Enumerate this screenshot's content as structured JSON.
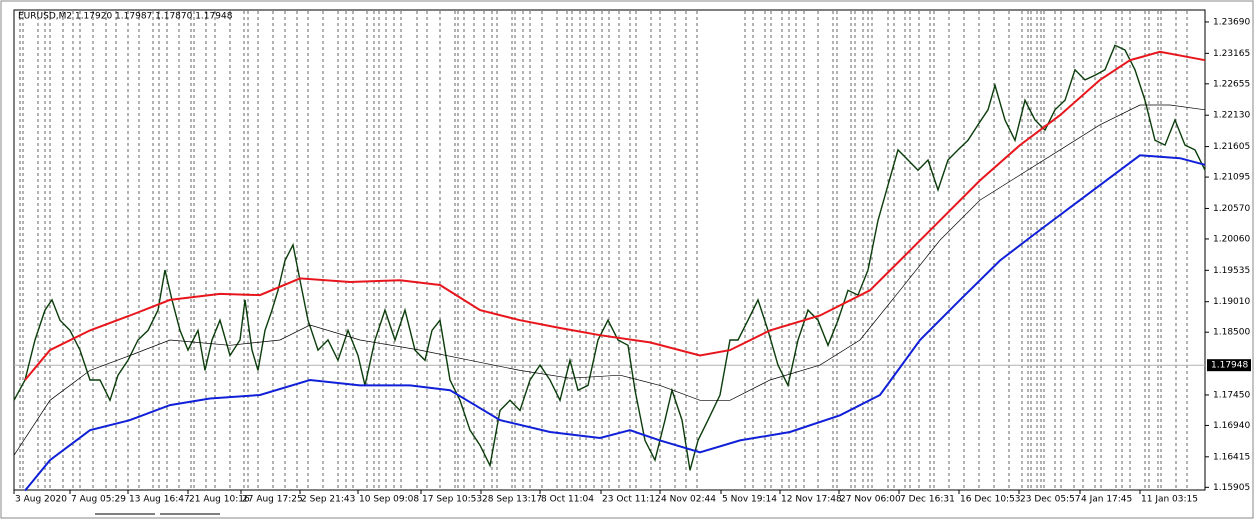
{
  "chart_data": {
    "type": "line",
    "title": "EURUSD,M2 1.17920 1.17987 1.17870 1.17948",
    "current_price": 1.17948,
    "current_price_color": "#000000",
    "xlim": [
      0,
      1191
    ],
    "ylim": [
      1.1586,
      1.2389
    ],
    "xticks": [
      {
        "value": 0,
        "label": "3 Aug 2020"
      },
      {
        "value": 56,
        "label": "7 Aug 05:29"
      },
      {
        "value": 114,
        "label": "13 Aug 16:47"
      },
      {
        "value": 174,
        "label": "21 Aug 10:16"
      },
      {
        "value": 227,
        "label": "27 Aug 17:25"
      },
      {
        "value": 286,
        "label": "2 Sep 21:43"
      },
      {
        "value": 344,
        "label": "10 Sep 09:08"
      },
      {
        "value": 407,
        "label": "17 Sep 10:53"
      },
      {
        "value": 467,
        "label": "28 Sep 13:17"
      },
      {
        "value": 526,
        "label": "8 Oct 11:04"
      },
      {
        "value": 587,
        "label": "23 Oct 11:12"
      },
      {
        "value": 646,
        "label": "4 Nov 02:44"
      },
      {
        "value": 707,
        "label": "5 Nov 19:14"
      },
      {
        "value": 766,
        "label": "12 Nov 17:48"
      },
      {
        "value": 825,
        "label": "27 Nov 06:00"
      },
      {
        "value": 885,
        "label": "7 Dec 16:31"
      },
      {
        "value": 945,
        "label": "16 Dec 10:53"
      },
      {
        "value": 1005,
        "label": "23 Dec 05:57"
      },
      {
        "value": 1066,
        "label": "4 Jan 17:45"
      },
      {
        "value": 1126,
        "label": "11 Jan 03:15"
      }
    ],
    "yticks": [
      {
        "value": 1.2369,
        "label": "1.23690"
      },
      1.23165,
      1.22655,
      {
        "value": 1.2213,
        "label": "1.22130"
      },
      1.21605,
      1.21095,
      {
        "value": 1.2057,
        "label": "1.20570"
      },
      {
        "value": 1.2006,
        "label": "1.20060"
      },
      1.19535,
      {
        "value": 1.1901,
        "label": "1.19010"
      },
      {
        "value": 1.185,
        "label": "1.18500"
      },
      {
        "value": 1.1745,
        "label": "1.17450"
      },
      {
        "value": 1.1694,
        "label": "1.16940"
      },
      1.16415,
      1.15905
    ],
    "series": [
      {
        "name": "EURUSD",
        "color": "#0b3d0b",
        "x": [
          0,
          11,
          21,
          31,
          38,
          46,
          56,
          66,
          76,
          86,
          96,
          104,
          114,
          124,
          134,
          144,
          151,
          158,
          166,
          174,
          184,
          191,
          198,
          206,
          216,
          226,
          231,
          238,
          244,
          251,
          258,
          264,
          271,
          279,
          286,
          294,
          304,
          314,
          324,
          334,
          344,
          351,
          361,
          371,
          381,
          391,
          401,
          411,
          418,
          426,
          436,
          446,
          456,
          466,
          476,
          486,
          496,
          506,
          516,
          526,
          536,
          546,
          556,
          564,
          574,
          584,
          594,
          604,
          614,
          621,
          631,
          641,
          651,
          658,
          668,
          676,
          684,
          694,
          706,
          716,
          724,
          734,
          744,
          754,
          764,
          774,
          784,
          794,
          804,
          814,
          824,
          834,
          844,
          854,
          864,
          874,
          884,
          894,
          904,
          914,
          924,
          934,
          944,
          954,
          964,
          974,
          981,
          991,
          1001,
          1011,
          1021,
          1031,
          1041,
          1051,
          1061,
          1071,
          1081,
          1091,
          1101,
          1111,
          1121,
          1131,
          1141,
          1151,
          1161,
          1171,
          1181,
          1191
        ],
        "values": [
          1.1736,
          1.177,
          1.1837,
          1.1887,
          1.1904,
          1.187,
          1.1853,
          1.182,
          1.177,
          1.177,
          1.1736,
          1.1778,
          1.1803,
          1.1837,
          1.1853,
          1.1887,
          1.1954,
          1.1904,
          1.1853,
          1.182,
          1.1853,
          1.1786,
          1.1837,
          1.187,
          1.1811,
          1.1837,
          1.1904,
          1.182,
          1.1786,
          1.1853,
          1.1887,
          1.192,
          1.197,
          1.1996,
          1.1937,
          1.187,
          1.182,
          1.1837,
          1.1803,
          1.1853,
          1.1811,
          1.1761,
          1.1837,
          1.1887,
          1.1837,
          1.1887,
          1.182,
          1.1803,
          1.1853,
          1.187,
          1.177,
          1.1736,
          1.1686,
          1.1661,
          1.1627,
          1.1719,
          1.1736,
          1.1719,
          1.177,
          1.1795,
          1.177,
          1.1736,
          1.1803,
          1.1753,
          1.1761,
          1.1837,
          1.187,
          1.1837,
          1.1828,
          1.1753,
          1.1669,
          1.1636,
          1.1703,
          1.1753,
          1.1703,
          1.1619,
          1.1669,
          1.1703,
          1.1745,
          1.1837,
          1.1837,
          1.187,
          1.1904,
          1.1853,
          1.1795,
          1.1761,
          1.1837,
          1.1887,
          1.187,
          1.1828,
          1.187,
          1.192,
          1.1912,
          1.1954,
          1.2037,
          1.2096,
          1.2155,
          1.2138,
          1.2121,
          1.2138,
          1.2088,
          1.2138,
          1.2155,
          1.2171,
          1.2197,
          1.2222,
          1.2263,
          1.2205,
          1.2171,
          1.2238,
          1.2205,
          1.2188,
          1.2222,
          1.2238,
          1.2289,
          1.2272,
          1.228,
          1.2289,
          1.233,
          1.2322,
          1.2289,
          1.2238,
          1.2171,
          1.2163,
          1.2205,
          1.2163,
          1.2155,
          1.2121
        ]
      },
      {
        "name": "MA red",
        "color": "#e8161c",
        "x": [
          11,
          36,
          76,
          116,
          156,
          206,
          246,
          286,
          336,
          386,
          426,
          466,
          506,
          546,
          586,
          636,
          686,
          716,
          756,
          806,
          856,
          886,
          926,
          966,
          1006,
          1046,
          1086,
          1116,
          1146,
          1191
        ],
        "values": [
          1.177,
          1.182,
          1.1853,
          1.1878,
          1.1904,
          1.1914,
          1.1912,
          1.194,
          1.1934,
          1.1937,
          1.1929,
          1.1887,
          1.187,
          1.1857,
          1.1845,
          1.1833,
          1.1811,
          1.182,
          1.1853,
          1.1878,
          1.192,
          1.197,
          1.2037,
          1.2104,
          1.2163,
          1.2213,
          1.2272,
          1.2305,
          1.2319,
          1.2305
        ]
      },
      {
        "name": "MA black",
        "color": "#000000",
        "x": [
          0,
          36,
          76,
          116,
          156,
          216,
          266,
          296,
          346,
          406,
          456,
          506,
          556,
          606,
          646,
          686,
          716,
          756,
          806,
          846,
          886,
          926,
          966,
          1006,
          1046,
          1086,
          1126,
          1156,
          1191
        ],
        "values": [
          1.1644,
          1.1736,
          1.1786,
          1.1811,
          1.1837,
          1.1828,
          1.1837,
          1.1862,
          1.1837,
          1.182,
          1.1803,
          1.1786,
          1.1773,
          1.1778,
          1.1761,
          1.1736,
          1.1736,
          1.177,
          1.1795,
          1.1837,
          1.192,
          1.2004,
          1.2071,
          1.2113,
          1.2155,
          1.2197,
          1.223,
          1.223,
          1.2222
        ]
      },
      {
        "name": "MA blue",
        "color": "#1020d8",
        "x": [
          11,
          36,
          76,
          116,
          156,
          196,
          246,
          296,
          346,
          396,
          436,
          486,
          536,
          586,
          616,
          646,
          686,
          726,
          776,
          826,
          866,
          906,
          946,
          986,
          1026,
          1066,
          1106,
          1126,
          1166,
          1191
        ],
        "values": [
          1.1585,
          1.1636,
          1.1686,
          1.1703,
          1.1728,
          1.1739,
          1.1745,
          1.177,
          1.1761,
          1.1761,
          1.1753,
          1.1703,
          1.1683,
          1.1673,
          1.1686,
          1.1669,
          1.1649,
          1.1669,
          1.1683,
          1.1711,
          1.1745,
          1.1837,
          1.1904,
          1.197,
          1.2021,
          1.2071,
          1.2121,
          1.2146,
          1.2141,
          1.213
        ]
      }
    ]
  }
}
